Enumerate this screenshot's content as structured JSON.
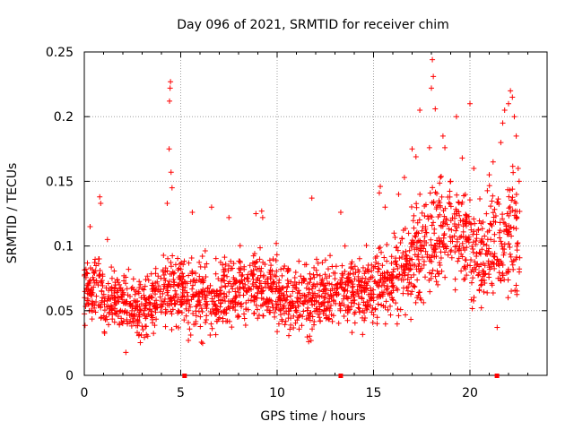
{
  "chart_data": {
    "type": "scatter",
    "title": "Day 096 of 2021, SRMTID for receiver chim",
    "xlabel": "GPS time / hours",
    "ylabel": "SRMTID / TECUs",
    "xlim": [
      0,
      24
    ],
    "ylim": [
      0,
      0.25
    ],
    "x_ticks": [
      0,
      5,
      10,
      15,
      20
    ],
    "x_tick_labels": [
      "0",
      "5",
      "10",
      "15",
      "20"
    ],
    "y_ticks": [
      0,
      0.05,
      0.1,
      0.15,
      0.2,
      0.25
    ],
    "y_tick_labels": [
      "0",
      "0.05",
      "0.1",
      "0.15",
      "0.2",
      "0.25"
    ],
    "grid": true,
    "marker": "+",
    "marker_color": "#ff0000",
    "axis_marks_x": [
      5.2,
      13.3,
      21.4
    ],
    "series": [
      {
        "name": "SRMTID",
        "segments": [
          {
            "x0": 0.0,
            "x1": 1.0,
            "mean": 0.068,
            "spread": 0.022
          },
          {
            "x0": 1.0,
            "x1": 2.0,
            "mean": 0.058,
            "spread": 0.02
          },
          {
            "x0": 2.0,
            "x1": 3.0,
            "mean": 0.052,
            "spread": 0.022
          },
          {
            "x0": 3.0,
            "x1": 4.0,
            "mean": 0.058,
            "spread": 0.022
          },
          {
            "x0": 4.0,
            "x1": 5.0,
            "mean": 0.066,
            "spread": 0.025
          },
          {
            "x0": 5.0,
            "x1": 6.0,
            "mean": 0.063,
            "spread": 0.025
          },
          {
            "x0": 6.0,
            "x1": 7.0,
            "mean": 0.058,
            "spread": 0.024
          },
          {
            "x0": 7.0,
            "x1": 8.0,
            "mean": 0.063,
            "spread": 0.024
          },
          {
            "x0": 8.0,
            "x1": 9.0,
            "mean": 0.065,
            "spread": 0.025
          },
          {
            "x0": 9.0,
            "x1": 10.0,
            "mean": 0.068,
            "spread": 0.025
          },
          {
            "x0": 10.0,
            "x1": 11.0,
            "mean": 0.058,
            "spread": 0.022
          },
          {
            "x0": 11.0,
            "x1": 12.0,
            "mean": 0.06,
            "spread": 0.024
          },
          {
            "x0": 12.0,
            "x1": 13.0,
            "mean": 0.063,
            "spread": 0.024
          },
          {
            "x0": 13.0,
            "x1": 14.0,
            "mean": 0.066,
            "spread": 0.024
          },
          {
            "x0": 14.0,
            "x1": 15.0,
            "mean": 0.066,
            "spread": 0.024
          },
          {
            "x0": 15.0,
            "x1": 16.0,
            "mean": 0.072,
            "spread": 0.028
          },
          {
            "x0": 16.0,
            "x1": 17.0,
            "mean": 0.082,
            "spread": 0.03
          },
          {
            "x0": 17.0,
            "x1": 18.0,
            "mean": 0.1,
            "spread": 0.035
          },
          {
            "x0": 18.0,
            "x1": 19.0,
            "mean": 0.112,
            "spread": 0.038
          },
          {
            "x0": 19.0,
            "x1": 20.0,
            "mean": 0.108,
            "spread": 0.035
          },
          {
            "x0": 20.0,
            "x1": 21.0,
            "mean": 0.09,
            "spread": 0.032
          },
          {
            "x0": 21.0,
            "x1": 22.0,
            "mean": 0.1,
            "spread": 0.036
          },
          {
            "x0": 22.0,
            "x1": 22.6,
            "mean": 0.11,
            "spread": 0.04
          }
        ],
        "points_per_hour": 90,
        "outliers": [
          [
            0.3,
            0.115
          ],
          [
            0.8,
            0.138
          ],
          [
            0.85,
            0.133
          ],
          [
            1.2,
            0.105
          ],
          [
            4.3,
            0.133
          ],
          [
            4.4,
            0.175
          ],
          [
            4.42,
            0.212
          ],
          [
            4.45,
            0.222
          ],
          [
            4.47,
            0.227
          ],
          [
            4.5,
            0.157
          ],
          [
            4.55,
            0.145
          ],
          [
            5.6,
            0.126
          ],
          [
            6.6,
            0.13
          ],
          [
            7.5,
            0.122
          ],
          [
            8.9,
            0.125
          ],
          [
            9.2,
            0.127
          ],
          [
            9.25,
            0.122
          ],
          [
            11.8,
            0.137
          ],
          [
            13.3,
            0.126
          ],
          [
            15.3,
            0.141
          ],
          [
            15.35,
            0.146
          ],
          [
            15.6,
            0.13
          ],
          [
            16.3,
            0.14
          ],
          [
            16.6,
            0.153
          ],
          [
            17.0,
            0.175
          ],
          [
            17.2,
            0.169
          ],
          [
            17.4,
            0.205
          ],
          [
            17.9,
            0.176
          ],
          [
            18.0,
            0.222
          ],
          [
            18.05,
            0.244
          ],
          [
            18.1,
            0.231
          ],
          [
            18.2,
            0.206
          ],
          [
            18.6,
            0.185
          ],
          [
            18.7,
            0.176
          ],
          [
            19.0,
            0.15
          ],
          [
            19.3,
            0.2
          ],
          [
            19.6,
            0.168
          ],
          [
            20.0,
            0.21
          ],
          [
            20.2,
            0.16
          ],
          [
            21.0,
            0.155
          ],
          [
            21.2,
            0.165
          ],
          [
            21.6,
            0.18
          ],
          [
            21.7,
            0.195
          ],
          [
            21.8,
            0.205
          ],
          [
            22.0,
            0.21
          ],
          [
            22.1,
            0.22
          ],
          [
            22.2,
            0.215
          ],
          [
            22.3,
            0.2
          ],
          [
            22.4,
            0.185
          ],
          [
            22.5,
            0.16
          ],
          [
            22.55,
            0.15
          ]
        ]
      }
    ]
  }
}
